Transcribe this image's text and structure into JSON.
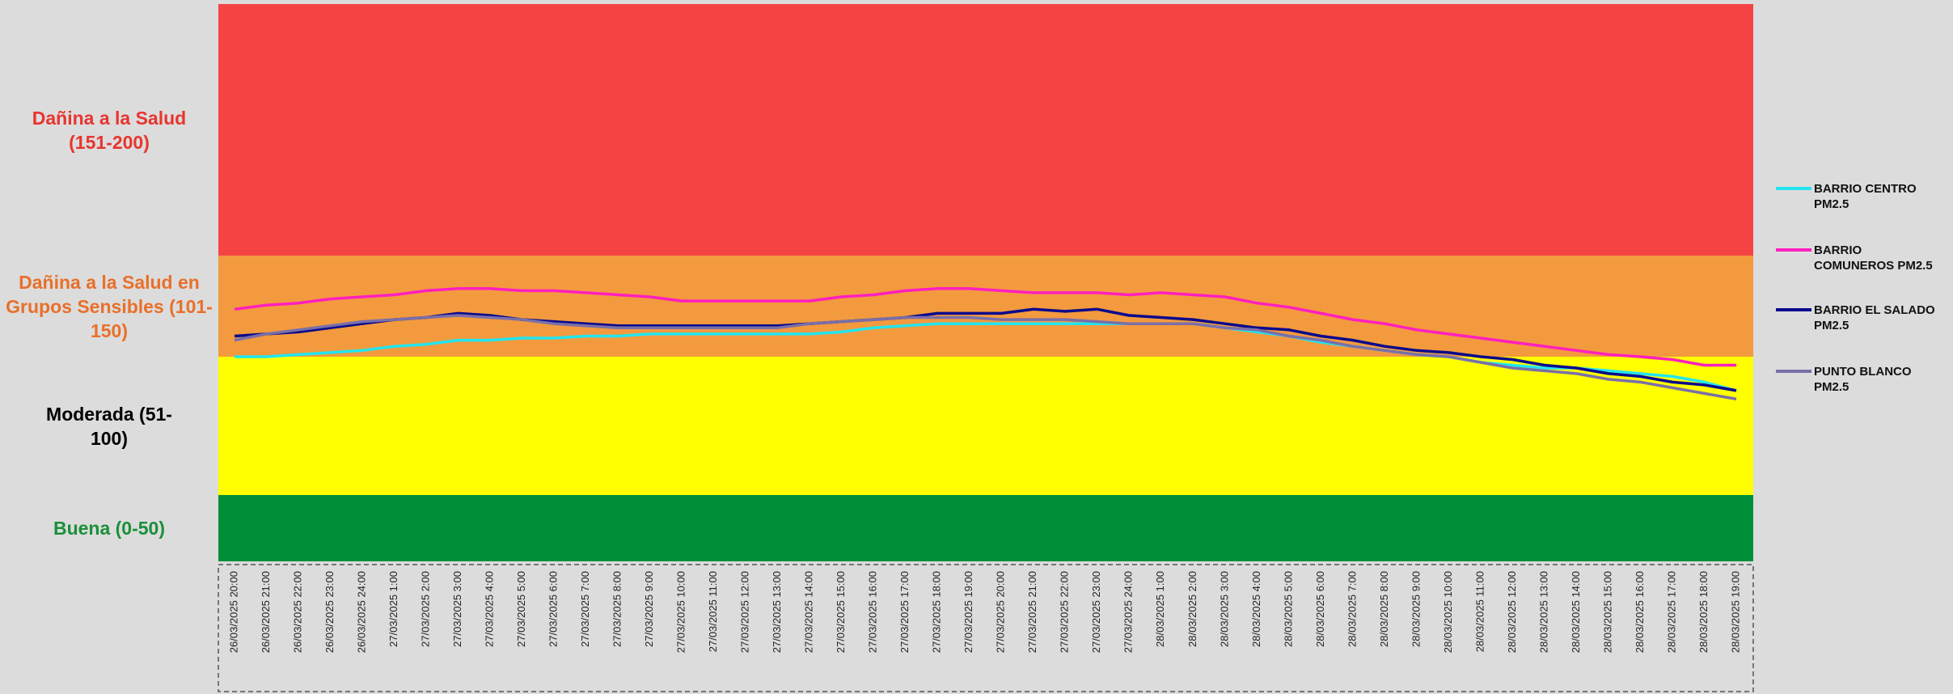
{
  "chart_data": {
    "type": "line",
    "ylim": [
      0,
      200
    ],
    "bands": [
      {
        "label": "Buena (0-50)",
        "from": 0,
        "to": 50,
        "color": "#008f39",
        "label_color": "#1a8f3a"
      },
      {
        "label": "Moderada (51-100)",
        "from": 51,
        "to": 100,
        "color": "#ffff00",
        "label_color": "#000000"
      },
      {
        "label": "Dañina a la Salud en Grupos Sensibles (101-150)",
        "from": 101,
        "to": 150,
        "color": "#f39a3e",
        "label_color": "#e8702a"
      },
      {
        "label": "Dañina a la Salud (151-200)",
        "from": 151,
        "to": 200,
        "color": "#f54343",
        "label_color": "#e8352f"
      }
    ],
    "categories": [
      "26/03/2025 20:00",
      "26/03/2025 21:00",
      "26/03/2025 22:00",
      "26/03/2025 23:00",
      "26/03/2025 24:00",
      "27/03/2025 1:00",
      "27/03/2025 2:00",
      "27/03/2025 3:00",
      "27/03/2025 4:00",
      "27/03/2025 5:00",
      "27/03/2025 6:00",
      "27/03/2025 7:00",
      "27/03/2025 8:00",
      "27/03/2025 9:00",
      "27/03/2025 10:00",
      "27/03/2025 11:00",
      "27/03/2025 12:00",
      "27/03/2025 13:00",
      "27/03/2025 14:00",
      "27/03/2025 15:00",
      "27/03/2025 16:00",
      "27/03/2025 17:00",
      "27/03/2025 18:00",
      "27/03/2025 19:00",
      "27/03/2025 20:00",
      "27/03/2025 21:00",
      "27/03/2025 22:00",
      "27/03/2025 23:00",
      "27/03/2025 24:00",
      "28/03/2025 1:00",
      "28/03/2025 2:00",
      "28/03/2025 3:00",
      "28/03/2025 4:00",
      "28/03/2025 5:00",
      "28/03/2025 6:00",
      "28/03/2025 7:00",
      "28/03/2025 8:00",
      "28/03/2025 9:00",
      "28/03/2025 10:00",
      "28/03/2025 11:00",
      "28/03/2025 12:00",
      "28/03/2025 13:00",
      "28/03/2025 14:00",
      "28/03/2025 15:00",
      "28/03/2025 16:00",
      "28/03/2025 17:00",
      "28/03/2025 18:00",
      "28/03/2025 19:00"
    ],
    "series": [
      {
        "name": "BARRIO CENTRO PM2.5",
        "color": "#22e5f0",
        "values": [
          100,
          101,
          102,
          103,
          104,
          106,
          107,
          109,
          109,
          110,
          110,
          111,
          111,
          112,
          112,
          112,
          112,
          112,
          112,
          113,
          115,
          116,
          117,
          117,
          117,
          117,
          117,
          117,
          117,
          117,
          117,
          115,
          113,
          111,
          108,
          106,
          104,
          102,
          100,
          98,
          97,
          96,
          96,
          95,
          94,
          93,
          91,
          88
        ]
      },
      {
        "name": "BARRIO COMUNEROS PM2.5",
        "color": "#ff1fbf",
        "values": [
          124,
          126,
          127,
          129,
          130,
          131,
          133,
          134,
          134,
          133,
          133,
          132,
          131,
          130,
          128,
          128,
          128,
          128,
          128,
          130,
          131,
          133,
          134,
          134,
          133,
          132,
          132,
          132,
          131,
          132,
          131,
          130,
          127,
          125,
          122,
          119,
          117,
          114,
          112,
          110,
          108,
          106,
          104,
          102,
          100,
          99,
          97,
          97
        ]
      },
      {
        "name": "BARRIO EL SALADO PM2.5",
        "color": "#0a0a8c",
        "values": [
          111,
          112,
          113,
          115,
          117,
          119,
          120,
          122,
          121,
          119,
          118,
          117,
          116,
          116,
          116,
          116,
          116,
          116,
          117,
          118,
          119,
          120,
          122,
          122,
          122,
          124,
          123,
          124,
          121,
          120,
          119,
          117,
          115,
          114,
          111,
          109,
          106,
          104,
          103,
          100,
          99,
          97,
          96,
          94,
          93,
          91,
          90,
          88
        ]
      },
      {
        "name": "PUNTO BLANCO PM2.5",
        "color": "#7a6fa8",
        "values": [
          109,
          112,
          114,
          116,
          118,
          119,
          120,
          121,
          120,
          119,
          117,
          116,
          115,
          115,
          115,
          115,
          115,
          115,
          117,
          118,
          119,
          120,
          120,
          120,
          119,
          119,
          119,
          118,
          117,
          117,
          117,
          115,
          114,
          111,
          109,
          106,
          104,
          102,
          100,
          98,
          96,
          95,
          94,
          92,
          91,
          89,
          87,
          85
        ]
      }
    ]
  }
}
